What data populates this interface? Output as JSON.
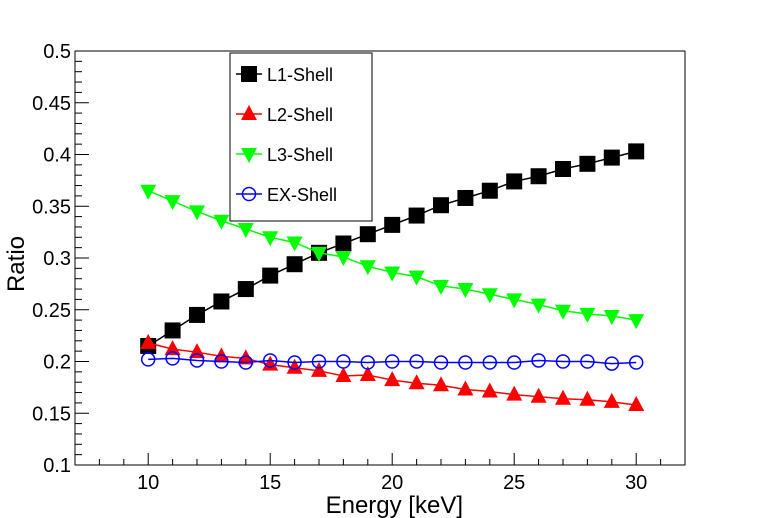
{
  "chart_data": {
    "type": "line",
    "title": "",
    "xlabel": "Energy [keV]",
    "ylabel": "Ratio",
    "xlim": [
      7.0,
      32.0
    ],
    "ylim": [
      0.1,
      0.5
    ],
    "x_ticks": [
      10,
      15,
      20,
      25,
      30
    ],
    "x_tick_labels": [
      "10",
      "15",
      "20",
      "25",
      "30"
    ],
    "y_ticks": [
      0.1,
      0.15,
      0.2,
      0.25,
      0.3,
      0.35,
      0.4,
      0.45,
      0.5
    ],
    "y_tick_labels": [
      "0.1",
      "0.15",
      "0.2",
      "0.25",
      "0.3",
      "0.35",
      "0.4",
      "0.45",
      "0.5"
    ],
    "grid": false,
    "legend_position": "top-center",
    "x": [
      10,
      11,
      12,
      13,
      14,
      15,
      16,
      17,
      18,
      19,
      20,
      21,
      22,
      23,
      24,
      25,
      26,
      27,
      28,
      29,
      30
    ],
    "series": [
      {
        "name": "L1-Shell",
        "color": "#000000",
        "marker": "square",
        "values": [
          0.215,
          0.23,
          0.245,
          0.258,
          0.27,
          0.283,
          0.294,
          0.305,
          0.314,
          0.323,
          0.332,
          0.341,
          0.351,
          0.358,
          0.365,
          0.374,
          0.379,
          0.386,
          0.391,
          0.397,
          0.403
        ]
      },
      {
        "name": "L2-Shell",
        "color": "#ff0000",
        "marker": "triangle-up",
        "values": [
          0.218,
          0.212,
          0.209,
          0.205,
          0.203,
          0.197,
          0.194,
          0.191,
          0.186,
          0.187,
          0.182,
          0.179,
          0.177,
          0.173,
          0.171,
          0.168,
          0.166,
          0.164,
          0.163,
          0.161,
          0.158
        ]
      },
      {
        "name": "L3-Shell",
        "color": "#00ff00",
        "marker": "triangle-down",
        "values": [
          0.365,
          0.355,
          0.345,
          0.336,
          0.328,
          0.32,
          0.315,
          0.305,
          0.301,
          0.292,
          0.286,
          0.282,
          0.273,
          0.27,
          0.265,
          0.26,
          0.255,
          0.249,
          0.246,
          0.244,
          0.24
        ]
      },
      {
        "name": "EX-Shell",
        "color": "#0000ff",
        "marker": "open-circle",
        "values": [
          0.202,
          0.203,
          0.201,
          0.2,
          0.199,
          0.201,
          0.199,
          0.2,
          0.2,
          0.199,
          0.2,
          0.2,
          0.199,
          0.199,
          0.199,
          0.199,
          0.201,
          0.2,
          0.2,
          0.198,
          0.199
        ]
      }
    ]
  }
}
